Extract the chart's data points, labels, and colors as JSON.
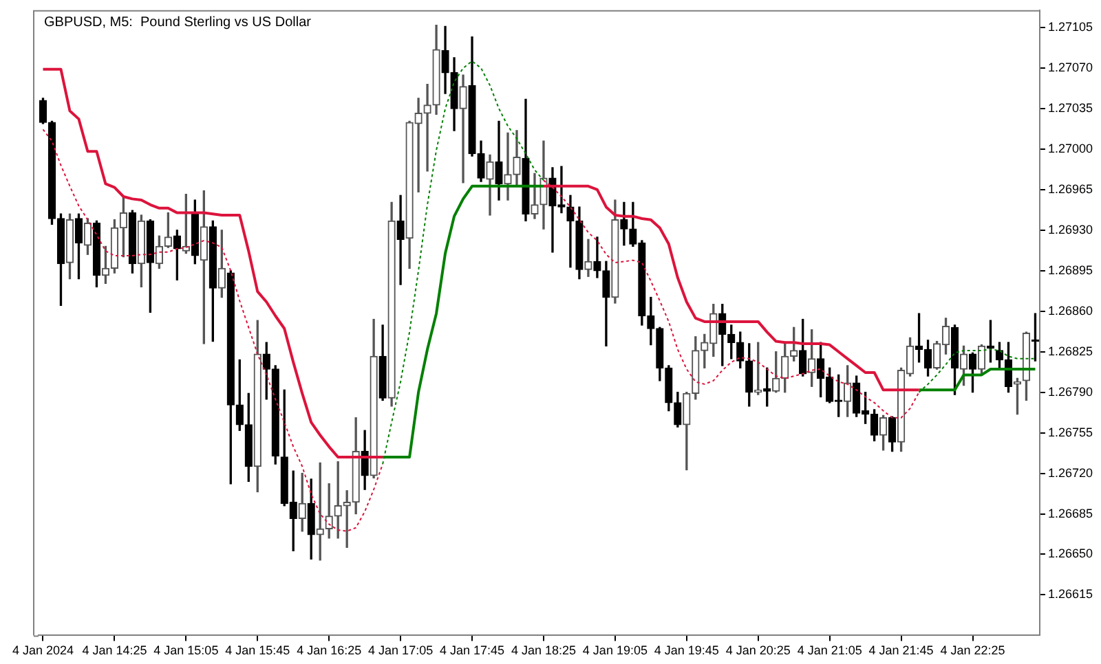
{
  "chart_data": {
    "type": "candlestick",
    "title": "GBPUSD, M5:  Pound Sterling vs US Dollar",
    "colors": [
      "#000000",
      "#000000",
      "#000000",
      "#555555",
      "#000000",
      "#555555",
      "#000000",
      "#555555",
      "#555555",
      "#555555",
      "#000000",
      "#555555",
      "#000000",
      "#555555",
      "#555555",
      "#000000",
      "#555555",
      "#000000",
      "#555555",
      "#000000",
      "#555555",
      "#000000",
      "#000000",
      "#000000",
      "#555555",
      "#000000",
      "#000000",
      "#000000",
      "#000000",
      "#555555",
      "#000000",
      "#555555",
      "#555555",
      "#555555",
      "#555555",
      "#555555",
      "#000000",
      "#555555",
      "#000000",
      "#555555",
      "#000000",
      "#555555",
      "#555555",
      "#555555",
      "#555555",
      "#000000",
      "#000000",
      "#555555",
      "#000000",
      "#000000",
      "#555555",
      "#000000",
      "#555555",
      "#555555",
      "#000000",
      "#555555",
      "#555555",
      "#000000",
      "#000000",
      "#000000",
      "#000000",
      "#555555",
      "#000000",
      "#000000",
      "#555555",
      "#000000",
      "#000000",
      "#000000",
      "#000000",
      "#000000",
      "#000000",
      "#000000",
      "#555555",
      "#555555",
      "#555555",
      "#555555",
      "#000000",
      "#000000",
      "#000000",
      "#000000",
      "#555555",
      "#000000",
      "#555555",
      "#555555",
      "#555555",
      "#000000",
      "#555555",
      "#000000",
      "#000000",
      "#000000",
      "#555555",
      "#000000",
      "#000000",
      "#000000",
      "#555555",
      "#000000",
      "#555555",
      "#555555",
      "#000000",
      "#000000",
      "#555555",
      "#555555",
      "#000000",
      "#555555",
      "#000000",
      "#555555",
      "#000000",
      "#000000",
      "#000000",
      "#555555",
      "#555555",
      "#000000"
    ],
    "categories": [
      "4 Jan 2024",
      null,
      null,
      null,
      null,
      null,
      null,
      null,
      "4 Jan 14:25",
      null,
      null,
      null,
      null,
      null,
      null,
      null,
      "4 Jan 15:05",
      null,
      null,
      null,
      null,
      null,
      null,
      null,
      "4 Jan 15:45",
      null,
      null,
      null,
      null,
      null,
      null,
      null,
      "4 Jan 16:25",
      null,
      null,
      null,
      null,
      null,
      null,
      null,
      "4 Jan 17:05",
      null,
      null,
      null,
      null,
      null,
      null,
      null,
      "4 Jan 17:45",
      null,
      null,
      null,
      null,
      null,
      null,
      null,
      "4 Jan 18:25",
      null,
      null,
      null,
      null,
      null,
      null,
      null,
      "4 Jan 19:05",
      null,
      null,
      null,
      null,
      null,
      null,
      null,
      "4 Jan 19:45",
      null,
      null,
      null,
      null,
      null,
      null,
      null,
      "4 Jan 20:25",
      null,
      null,
      null,
      null,
      null,
      null,
      null,
      "4 Jan 21:05",
      null,
      null,
      null,
      null,
      null,
      null,
      null,
      "4 Jan 21:45",
      null,
      null,
      null,
      null,
      null,
      null,
      null,
      "4 Jan 22:25",
      null,
      null,
      null,
      null,
      null,
      null,
      null
    ],
    "ohlc": [
      [
        1.27042,
        1.27044,
        1.27022,
        1.27023
      ],
      [
        1.27023,
        1.27024,
        1.26935,
        1.2694
      ],
      [
        1.2694,
        1.26944,
        1.26865,
        1.26901
      ],
      [
        1.26902,
        1.26944,
        1.26888,
        1.26939
      ],
      [
        1.2694,
        1.26944,
        1.26888,
        1.26919
      ],
      [
        1.26917,
        1.2694,
        1.26909,
        1.26936
      ],
      [
        1.26936,
        1.26938,
        1.26881,
        1.26891
      ],
      [
        1.26891,
        1.26916,
        1.26884,
        1.26897
      ],
      [
        1.26897,
        1.26939,
        1.26893,
        1.26932
      ],
      [
        1.26932,
        1.26959,
        1.26907,
        1.26945
      ],
      [
        1.26945,
        1.26947,
        1.26893,
        1.26901
      ],
      [
        1.26901,
        1.26943,
        1.26881,
        1.26938
      ],
      [
        1.26938,
        1.26939,
        1.26859,
        1.26902
      ],
      [
        1.26901,
        1.26925,
        1.26897,
        1.26916
      ],
      [
        1.26916,
        1.26945,
        1.26915,
        1.26924
      ],
      [
        1.26925,
        1.2693,
        1.26887,
        1.26914
      ],
      [
        1.26912,
        1.26961,
        1.2691,
        1.26916
      ],
      [
        1.26944,
        1.26956,
        1.26901,
        1.26908
      ],
      [
        1.26904,
        1.26964,
        1.26832,
        1.26933
      ],
      [
        1.26933,
        1.26938,
        1.26834,
        1.2688
      ],
      [
        1.2688,
        1.2693,
        1.26872,
        1.26897
      ],
      [
        1.26893,
        1.26895,
        1.26711,
        1.26779
      ],
      [
        1.26779,
        1.26818,
        1.26757,
        1.26762
      ],
      [
        1.26762,
        1.26789,
        1.26713,
        1.26726
      ],
      [
        1.26726,
        1.26852,
        1.26704,
        1.26823
      ],
      [
        1.26823,
        1.26833,
        1.26784,
        1.2681
      ],
      [
        1.2681,
        1.26813,
        1.26728,
        1.26735
      ],
      [
        1.26734,
        1.26792,
        1.26692,
        1.26694
      ],
      [
        1.26695,
        1.26722,
        1.26653,
        1.26681
      ],
      [
        1.26681,
        1.2672,
        1.2667,
        1.26694
      ],
      [
        1.26694,
        1.26715,
        1.26646,
        1.26667
      ],
      [
        1.26667,
        1.26729,
        1.26645,
        1.26672
      ],
      [
        1.26672,
        1.26711,
        1.26664,
        1.26683
      ],
      [
        1.26683,
        1.2673,
        1.26664,
        1.26692
      ],
      [
        1.26692,
        1.26705,
        1.26656,
        1.26695
      ],
      [
        1.26695,
        1.26768,
        1.26685,
        1.26739
      ],
      [
        1.26739,
        1.26757,
        1.26706,
        1.26718
      ],
      [
        1.26718,
        1.26853,
        1.26716,
        1.26821
      ],
      [
        1.26821,
        1.26848,
        1.26783,
        1.26785
      ],
      [
        1.26785,
        1.26954,
        1.26778,
        1.26938
      ],
      [
        1.26938,
        1.2696,
        1.26883,
        1.26922
      ],
      [
        1.26923,
        1.27024,
        1.26897,
        1.27023
      ],
      [
        1.27022,
        1.27044,
        1.26963,
        1.27031
      ],
      [
        1.27031,
        1.27056,
        1.26981,
        1.27038
      ],
      [
        1.27038,
        1.27107,
        1.2703,
        1.27086
      ],
      [
        1.27085,
        1.27106,
        1.27048,
        1.27066
      ],
      [
        1.27066,
        1.27079,
        1.27016,
        1.27035
      ],
      [
        1.27035,
        1.27064,
        1.26971,
        1.27054
      ],
      [
        1.27055,
        1.27097,
        1.26994,
        1.26996
      ],
      [
        1.26996,
        1.27007,
        1.26972,
        1.26975
      ],
      [
        1.26974,
        1.26995,
        1.26943,
        1.26989
      ],
      [
        1.26989,
        1.27024,
        1.26956,
        1.2697
      ],
      [
        1.2697,
        1.27014,
        1.26956,
        1.26978
      ],
      [
        1.26978,
        1.27016,
        1.26968,
        1.26993
      ],
      [
        1.26992,
        1.27043,
        1.26938,
        1.26944
      ],
      [
        1.26944,
        1.26979,
        1.2694,
        1.26952
      ],
      [
        1.26952,
        1.27007,
        1.26931,
        1.26975
      ],
      [
        1.26975,
        1.26984,
        1.26911,
        1.26951
      ],
      [
        1.26952,
        1.26985,
        1.26945,
        1.2695
      ],
      [
        1.2695,
        1.2696,
        1.26898,
        1.26938
      ],
      [
        1.26938,
        1.2695,
        1.26888,
        1.26896
      ],
      [
        1.26896,
        1.26922,
        1.2689,
        1.26903
      ],
      [
        1.26903,
        1.26924,
        1.26889,
        1.26895
      ],
      [
        1.26895,
        1.26903,
        1.2683,
        1.26872
      ],
      [
        1.26872,
        1.26956,
        1.26867,
        1.26939
      ],
      [
        1.26939,
        1.26954,
        1.26917,
        1.26931
      ],
      [
        1.26931,
        1.26954,
        1.26916,
        1.26918
      ],
      [
        1.26919,
        1.26921,
        1.26848,
        1.26856
      ],
      [
        1.26856,
        1.26872,
        1.26831,
        1.26845
      ],
      [
        1.26845,
        1.26846,
        1.268,
        1.26811
      ],
      [
        1.26811,
        1.26813,
        1.26774,
        1.26781
      ],
      [
        1.26781,
        1.2679,
        1.2676,
        1.26762
      ],
      [
        1.26762,
        1.2679,
        1.26723,
        1.26789
      ],
      [
        1.26789,
        1.26838,
        1.26784,
        1.26826
      ],
      [
        1.26826,
        1.2684,
        1.26811,
        1.26833
      ],
      [
        1.26832,
        1.26866,
        1.26821,
        1.26858
      ],
      [
        1.26858,
        1.26866,
        1.26813,
        1.2684
      ],
      [
        1.2684,
        1.26848,
        1.26819,
        1.26833
      ],
      [
        1.26833,
        1.26842,
        1.26811,
        1.26817
      ],
      [
        1.26817,
        1.26832,
        1.26778,
        1.2679
      ],
      [
        1.2679,
        1.26833,
        1.26788,
        1.26792
      ],
      [
        1.26793,
        1.26811,
        1.26778,
        1.26791
      ],
      [
        1.26791,
        1.26825,
        1.2679,
        1.26802
      ],
      [
        1.26802,
        1.26833,
        1.2679,
        1.26821
      ],
      [
        1.26821,
        1.26846,
        1.26817,
        1.26826
      ],
      [
        1.26826,
        1.26853,
        1.26804,
        1.26806
      ],
      [
        1.26807,
        1.26844,
        1.26795,
        1.26819
      ],
      [
        1.26819,
        1.26833,
        1.26786,
        1.26802
      ],
      [
        1.26803,
        1.26811,
        1.26781,
        1.26782
      ],
      [
        1.26783,
        1.26805,
        1.26769,
        1.26782
      ],
      [
        1.26782,
        1.26813,
        1.26769,
        1.26798
      ],
      [
        1.26798,
        1.26804,
        1.26769,
        1.26772
      ],
      [
        1.26774,
        1.2679,
        1.26763,
        1.26771
      ],
      [
        1.26771,
        1.26775,
        1.26748,
        1.26753
      ],
      [
        1.26753,
        1.2677,
        1.2674,
        1.26768
      ],
      [
        1.26768,
        1.26769,
        1.26739,
        1.26747
      ],
      [
        1.26747,
        1.26811,
        1.26739,
        1.26809
      ],
      [
        1.26806,
        1.26837,
        1.26804,
        1.2683
      ],
      [
        1.2683,
        1.26858,
        1.26816,
        1.26827
      ],
      [
        1.26827,
        1.26835,
        1.26804,
        1.26811
      ],
      [
        1.26811,
        1.26834,
        1.2681,
        1.26832
      ],
      [
        1.26831,
        1.26854,
        1.26823,
        1.26847
      ],
      [
        1.26846,
        1.26848,
        1.26788,
        1.26811
      ],
      [
        1.2681,
        1.2683,
        1.26796,
        1.26823
      ],
      [
        1.26823,
        1.26824,
        1.2679,
        1.2681
      ],
      [
        1.2681,
        1.26831,
        1.26805,
        1.2683
      ],
      [
        1.2683,
        1.26852,
        1.26816,
        1.26828
      ],
      [
        1.26826,
        1.26833,
        1.2681,
        1.26818
      ],
      [
        1.26818,
        1.26833,
        1.2679,
        1.26795
      ],
      [
        1.26797,
        1.26802,
        1.26771,
        1.26799
      ],
      [
        1.268,
        1.26842,
        1.26783,
        1.26841
      ],
      [
        1.26835,
        1.26858,
        1.26817,
        1.26834
      ]
    ],
    "series": [
      {
        "type": "line",
        "color": "#dc143c",
        "line_style": "solid",
        "values": [
          1.27069,
          1.27069,
          1.27069,
          1.27033,
          1.27026,
          1.26998,
          1.26998,
          1.2697,
          1.26967,
          1.26959,
          1.26957,
          1.26956,
          1.26952,
          1.26949,
          1.26949,
          1.26945,
          1.26945,
          1.26945,
          1.26945,
          1.26944,
          1.26943,
          1.26943,
          1.26943,
          1.26912,
          1.26877,
          1.26868,
          1.26856,
          1.26845,
          1.26816,
          1.26789,
          1.26764,
          1.26753,
          1.26743,
          1.26734,
          1.26734,
          1.26734,
          1.26734,
          1.26734,
          1.26734,
          null,
          null,
          null,
          null,
          null,
          null,
          null,
          null,
          null,
          null,
          null,
          null,
          null,
          null,
          null,
          null,
          null,
          1.26968,
          1.26968,
          1.26968,
          1.26968,
          1.26968,
          1.26968,
          1.26965,
          1.2695,
          1.26943,
          1.26942,
          1.26942,
          1.2694,
          1.26939,
          1.26932,
          1.26918,
          1.26889,
          1.26868,
          1.26854,
          1.26851,
          1.26851,
          1.26851,
          1.26851,
          1.26851,
          1.26851,
          1.26851,
          1.26842,
          1.26834,
          1.26833,
          1.26833,
          1.26832,
          1.26832,
          1.26832,
          1.26831,
          1.26825,
          1.26819,
          1.26813,
          1.26807,
          1.26807,
          1.26792,
          1.26792,
          1.26792,
          1.26792,
          1.26792,
          null,
          null,
          null,
          null,
          null,
          null,
          null,
          null,
          null,
          null,
          null,
          null,
          null
        ]
      },
      {
        "type": "line",
        "color": "#008000",
        "line_style": "solid",
        "values": [
          null,
          null,
          null,
          null,
          null,
          null,
          null,
          null,
          null,
          null,
          null,
          null,
          null,
          null,
          null,
          null,
          null,
          null,
          null,
          null,
          null,
          null,
          null,
          null,
          null,
          null,
          null,
          null,
          null,
          null,
          null,
          null,
          null,
          null,
          null,
          null,
          null,
          null,
          1.26734,
          1.26734,
          1.26734,
          1.26734,
          1.2679,
          1.26827,
          1.26858,
          1.2691,
          1.26942,
          1.26957,
          1.26968,
          1.26968,
          1.26968,
          1.26968,
          1.26968,
          1.26968,
          1.26968,
          1.26968,
          1.26968,
          null,
          null,
          null,
          null,
          null,
          null,
          null,
          null,
          null,
          null,
          null,
          null,
          null,
          null,
          null,
          null,
          null,
          null,
          null,
          null,
          null,
          null,
          null,
          null,
          null,
          null,
          null,
          null,
          null,
          null,
          null,
          null,
          null,
          null,
          null,
          null,
          null,
          null,
          null,
          null,
          null,
          1.26792,
          1.26792,
          1.26792,
          1.26792,
          1.26792,
          1.26805,
          1.26805,
          1.26805,
          1.2681,
          1.2681,
          1.2681,
          1.2681,
          1.2681,
          1.2681
        ]
      },
      {
        "type": "line",
        "color": "#dc143c",
        "line_style": "dashed",
        "values": [
          1.27017,
          1.27007,
          1.26986,
          1.26968,
          1.26951,
          1.26939,
          1.26926,
          1.26912,
          1.26908,
          1.26908,
          1.26908,
          1.26909,
          1.26909,
          1.26911,
          1.26911,
          1.26914,
          1.26915,
          1.26918,
          1.26921,
          1.26919,
          1.26915,
          1.26895,
          1.26869,
          1.26846,
          1.26823,
          1.26805,
          1.26784,
          1.26764,
          1.26743,
          1.26726,
          1.26702,
          1.26685,
          1.26676,
          1.26671,
          1.2667,
          1.26673,
          1.26687,
          1.26706,
          1.26728,
          null,
          null,
          null,
          null,
          null,
          null,
          null,
          null,
          null,
          null,
          null,
          null,
          null,
          null,
          null,
          null,
          null,
          1.26973,
          1.26967,
          1.26959,
          1.2695,
          1.26939,
          1.26928,
          1.26921,
          1.26909,
          1.26902,
          1.26903,
          1.26904,
          1.26902,
          1.26886,
          1.26869,
          1.26851,
          1.26827,
          1.2681,
          1.26799,
          1.26797,
          1.268,
          1.26809,
          1.26816,
          1.2682,
          1.26819,
          1.26816,
          1.2681,
          1.26804,
          1.26802,
          1.26804,
          1.26806,
          1.26809,
          1.2681,
          1.26804,
          1.26799,
          1.26797,
          1.26792,
          1.26786,
          1.26781,
          1.26774,
          1.26768,
          1.26768,
          1.26776,
          1.2679,
          null,
          null,
          null,
          null,
          null,
          null,
          null,
          null,
          null,
          null,
          null,
          null,
          null
        ]
      },
      {
        "type": "line",
        "color": "#008000",
        "line_style": "dashed",
        "values": [
          null,
          null,
          null,
          null,
          null,
          null,
          null,
          null,
          null,
          null,
          null,
          null,
          null,
          null,
          null,
          null,
          null,
          null,
          null,
          null,
          null,
          null,
          null,
          null,
          null,
          null,
          null,
          null,
          null,
          null,
          null,
          null,
          null,
          null,
          null,
          null,
          null,
          null,
          1.26728,
          1.26764,
          1.26799,
          1.26842,
          1.26895,
          1.26952,
          1.26999,
          1.27035,
          1.27058,
          1.2707,
          1.27076,
          1.2707,
          1.27055,
          1.27035,
          1.2702,
          1.27009,
          1.26996,
          1.26982,
          1.26973,
          null,
          null,
          null,
          null,
          null,
          null,
          null,
          null,
          null,
          null,
          null,
          null,
          null,
          null,
          null,
          null,
          null,
          null,
          null,
          null,
          null,
          null,
          null,
          null,
          null,
          null,
          null,
          null,
          null,
          null,
          null,
          null,
          null,
          null,
          null,
          null,
          null,
          null,
          null,
          null,
          null,
          1.2679,
          1.26797,
          1.26805,
          1.26814,
          1.26824,
          1.26826,
          1.26826,
          1.26826,
          1.26827,
          1.26826,
          1.26821,
          1.26819,
          1.26819,
          1.26819
        ]
      }
    ],
    "ylim": [
      1.2658,
      1.2712
    ],
    "yticks": [
      1.27105,
      {
        "value": 1.2707,
        "label": "1.27070"
      },
      1.27035,
      {
        "value": 1.27,
        "label": "1.27000"
      },
      1.26965,
      {
        "value": 1.2693,
        "label": "1.26930"
      },
      1.26895,
      {
        "value": 1.2686,
        "label": "1.26860"
      },
      1.26825,
      {
        "value": 1.2679,
        "label": "1.26790"
      },
      1.26755,
      {
        "value": 1.2672,
        "label": "1.26720"
      },
      1.26685,
      {
        "value": 1.2665,
        "label": "1.26650"
      },
      1.26615
    ],
    "grid": false,
    "legend": false
  }
}
